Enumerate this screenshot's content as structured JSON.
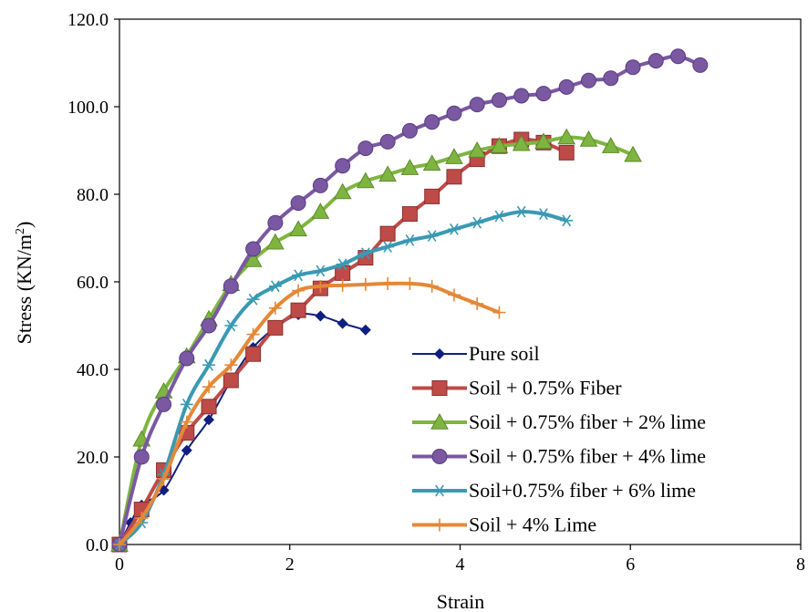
{
  "chart_data": {
    "type": "line",
    "title": "",
    "xlabel": "Strain",
    "ylabel_main": "Stress (KN/m",
    "ylabel_sup": "2",
    "ylabel_close": ")",
    "xlim": [
      0,
      8
    ],
    "ylim": [
      0,
      120
    ],
    "xticks": [
      "0",
      "2",
      "4",
      "6",
      "8"
    ],
    "yticks": [
      "0.0",
      "20.0",
      "40.0",
      "60.0",
      "80.0",
      "100.0",
      "120.0"
    ],
    "grid": false,
    "legend_position": "lower-right",
    "series": [
      {
        "name": "Pure soil",
        "color": "#0f1f80",
        "marker": "diamond",
        "x": [
          0,
          0.13,
          0.26,
          0.52,
          0.79,
          1.05,
          1.31,
          1.57,
          1.83,
          2.1,
          2.36,
          2.62,
          2.89
        ],
        "y": [
          0,
          5,
          9,
          12.4,
          21.5,
          28.5,
          37.5,
          45,
          49.5,
          52.5,
          52.2,
          50.5,
          49
        ]
      },
      {
        "name": "Soil + 0.75% Fiber",
        "color": "#be4b48",
        "marker": "square",
        "x": [
          0,
          0.26,
          0.52,
          0.79,
          1.05,
          1.31,
          1.57,
          1.83,
          2.1,
          2.36,
          2.62,
          2.89,
          3.15,
          3.41,
          3.67,
          3.93,
          4.2,
          4.46,
          4.72,
          4.98,
          5.25
        ],
        "y": [
          0,
          8,
          17,
          25.5,
          31.5,
          37.5,
          43.5,
          49.5,
          53.5,
          58.5,
          62,
          65.5,
          71,
          75.5,
          79.5,
          84,
          88,
          91,
          92.5,
          91.8,
          89.5
        ]
      },
      {
        "name": "Soil + 0.75% fiber + 2% lime",
        "color": "#7eb540",
        "marker": "triangle",
        "x": [
          0,
          0.26,
          0.52,
          0.79,
          1.05,
          1.31,
          1.57,
          1.83,
          2.1,
          2.36,
          2.62,
          2.89,
          3.15,
          3.41,
          3.67,
          3.93,
          4.2,
          4.46,
          4.72,
          4.98,
          5.25,
          5.51,
          5.77,
          6.03
        ],
        "y": [
          0,
          24,
          35,
          43,
          51.5,
          59.5,
          65,
          69,
          72,
          76,
          80.5,
          83,
          84.5,
          86,
          87,
          88.5,
          90,
          91,
          91.5,
          92,
          93,
          92.5,
          91,
          89
        ]
      },
      {
        "name": "Soil + 0.75% fiber + 4% lime",
        "color": "#7a58a2",
        "marker": "circle",
        "x": [
          0,
          0.26,
          0.52,
          0.79,
          1.05,
          1.31,
          1.57,
          1.83,
          2.1,
          2.36,
          2.62,
          2.89,
          3.15,
          3.41,
          3.67,
          3.93,
          4.2,
          4.46,
          4.72,
          4.98,
          5.25,
          5.51,
          5.77,
          6.03,
          6.3,
          6.56,
          6.82
        ],
        "y": [
          0,
          20,
          32,
          42.5,
          50,
          59,
          67.5,
          73.5,
          78,
          82,
          86.5,
          90.5,
          92,
          94.5,
          96.5,
          98.5,
          100.5,
          101.5,
          102.5,
          103,
          104.5,
          106,
          106.5,
          109,
          110.5,
          111.5,
          109.5
        ]
      },
      {
        "name": "Soil+0.75% fiber + 6% lime",
        "color": "#3a99b3",
        "marker": "asterisk",
        "x": [
          0,
          0.26,
          0.52,
          0.79,
          1.05,
          1.31,
          1.57,
          1.83,
          2.1,
          2.36,
          2.62,
          2.89,
          3.15,
          3.41,
          3.67,
          3.93,
          4.2,
          4.46,
          4.72,
          4.98,
          5.25
        ],
        "y": [
          0,
          5,
          16,
          32,
          41,
          50,
          56,
          59,
          61.5,
          62.5,
          64,
          66.5,
          68,
          69.5,
          70.5,
          72,
          73.5,
          75,
          76,
          75.5,
          74
        ]
      },
      {
        "name": "Soil + 4% Lime",
        "color": "#e48838",
        "marker": "plus",
        "x": [
          0,
          0.26,
          0.52,
          0.79,
          1.05,
          1.31,
          1.57,
          1.83,
          2.1,
          2.36,
          2.62,
          2.89,
          3.15,
          3.41,
          3.67,
          3.93,
          4.2,
          4.46
        ],
        "y": [
          0,
          6,
          15,
          28,
          36,
          41,
          48,
          54,
          58,
          59,
          59.2,
          59.4,
          59.6,
          59.6,
          59,
          57,
          55,
          53
        ]
      }
    ]
  }
}
